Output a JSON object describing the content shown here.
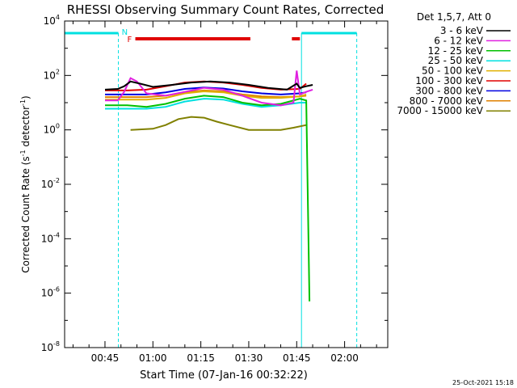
{
  "chart_data": {
    "type": "line",
    "title": "RHESSI Observing Summary Count Rates, Corrected",
    "xlabel": "Start Time (07-Jan-16 00:32:22)",
    "ylabel_parts": {
      "before": "Corrected Count Rate (s",
      "exp1": "-1",
      "mid": " detector",
      "exp2": "-1",
      "after": ")"
    },
    "x_ticks": [
      "00:45",
      "01:00",
      "01:15",
      "01:30",
      "01:45",
      "02:00"
    ],
    "x_tick_minutes": [
      45,
      60,
      75,
      90,
      105,
      120
    ],
    "xlim_minutes": [
      32.37,
      133.5
    ],
    "y_scale": "log",
    "ylim": [
      1e-08,
      10000.0
    ],
    "y_ticks": [
      {
        "base": "10",
        "exp": "4",
        "value": 4
      },
      {
        "base": "10",
        "exp": "2",
        "value": 2
      },
      {
        "base": "10",
        "exp": "0",
        "value": 0
      },
      {
        "base": "10",
        "exp": "-2",
        "value": -2
      },
      {
        "base": "10",
        "exp": "-4",
        "value": -4
      },
      {
        "base": "10",
        "exp": "-6",
        "value": -6
      },
      {
        "base": "10",
        "exp": "-8",
        "value": -8
      }
    ],
    "legend_title": "Det 1,5,7, Att 0",
    "legend_placement": "right",
    "series": [
      {
        "name": "3 - 6 keV",
        "color": "#000000",
        "points": [
          [
            45,
            30
          ],
          [
            49,
            32
          ],
          [
            51,
            40
          ],
          [
            53,
            60
          ],
          [
            56,
            50
          ],
          [
            60,
            38
          ],
          [
            66,
            45
          ],
          [
            72,
            55
          ],
          [
            78,
            60
          ],
          [
            84,
            55
          ],
          [
            90,
            45
          ],
          [
            96,
            35
          ],
          [
            102,
            30
          ],
          [
            105,
            50
          ],
          [
            106,
            35
          ],
          [
            108,
            40
          ],
          [
            110,
            45
          ]
        ]
      },
      {
        "name": "6 - 12 keV",
        "color": "#e020e0",
        "points": [
          [
            45,
            12
          ],
          [
            49,
            12
          ],
          [
            51,
            25
          ],
          [
            53,
            80
          ],
          [
            55,
            60
          ],
          [
            58,
            22
          ],
          [
            64,
            18
          ],
          [
            70,
            25
          ],
          [
            76,
            35
          ],
          [
            82,
            30
          ],
          [
            88,
            18
          ],
          [
            94,
            10
          ],
          [
            100,
            8
          ],
          [
            104,
            10
          ],
          [
            105,
            150
          ],
          [
            106,
            20
          ],
          [
            108,
            25
          ],
          [
            110,
            30
          ]
        ]
      },
      {
        "name": "12 - 25 keV",
        "color": "#00c000",
        "points": [
          [
            45,
            8
          ],
          [
            52,
            8
          ],
          [
            58,
            7
          ],
          [
            64,
            9
          ],
          [
            70,
            14
          ],
          [
            76,
            18
          ],
          [
            82,
            16
          ],
          [
            88,
            10
          ],
          [
            94,
            8
          ],
          [
            100,
            9
          ],
          [
            106,
            14
          ],
          [
            108,
            12
          ],
          [
            109,
            5e-07
          ]
        ]
      },
      {
        "name": "25 - 50 keV",
        "color": "#00e0e0",
        "points": [
          [
            45,
            6
          ],
          [
            52,
            6
          ],
          [
            58,
            6
          ],
          [
            64,
            7
          ],
          [
            70,
            11
          ],
          [
            76,
            14
          ],
          [
            82,
            13
          ],
          [
            88,
            9
          ],
          [
            94,
            7
          ],
          [
            100,
            8
          ],
          [
            106,
            10
          ],
          [
            108,
            10
          ]
        ]
      },
      {
        "name": "50 - 100 keV",
        "color": "#e0b000",
        "points": [
          [
            45,
            13
          ],
          [
            52,
            13
          ],
          [
            58,
            13
          ],
          [
            64,
            15
          ],
          [
            70,
            22
          ],
          [
            76,
            26
          ],
          [
            82,
            24
          ],
          [
            88,
            18
          ],
          [
            94,
            15
          ],
          [
            100,
            15
          ],
          [
            106,
            17
          ],
          [
            108,
            20
          ]
        ]
      },
      {
        "name": "100 - 300 keV",
        "color": "#e00000",
        "points": [
          [
            45,
            28
          ],
          [
            52,
            28
          ],
          [
            58,
            30
          ],
          [
            64,
            40
          ],
          [
            70,
            55
          ],
          [
            76,
            60
          ],
          [
            82,
            55
          ],
          [
            88,
            45
          ],
          [
            94,
            35
          ],
          [
            100,
            30
          ],
          [
            106,
            32
          ],
          [
            108,
            50
          ]
        ]
      },
      {
        "name": "300 - 800 keV",
        "color": "#0000e0",
        "points": [
          [
            45,
            20
          ],
          [
            52,
            20
          ],
          [
            58,
            20
          ],
          [
            64,
            24
          ],
          [
            70,
            32
          ],
          [
            76,
            36
          ],
          [
            82,
            33
          ],
          [
            88,
            26
          ],
          [
            94,
            22
          ],
          [
            100,
            20
          ],
          [
            106,
            22
          ],
          [
            108,
            24
          ]
        ]
      },
      {
        "name": "800 - 7000 keV",
        "color": "#e08000",
        "points": [
          [
            45,
            16
          ],
          [
            52,
            16
          ],
          [
            58,
            16
          ],
          [
            64,
            18
          ],
          [
            70,
            24
          ],
          [
            76,
            28
          ],
          [
            82,
            26
          ],
          [
            88,
            20
          ],
          [
            94,
            17
          ],
          [
            100,
            16
          ],
          [
            106,
            17
          ],
          [
            108,
            18
          ]
        ]
      },
      {
        "name": "7000 - 15000 keV",
        "color": "#808000",
        "points": [
          [
            53,
            1
          ],
          [
            60,
            1.1
          ],
          [
            64,
            1.5
          ],
          [
            68,
            2.5
          ],
          [
            72,
            3
          ],
          [
            76,
            2.8
          ],
          [
            80,
            2
          ],
          [
            84,
            1.5
          ],
          [
            90,
            1
          ],
          [
            96,
            1
          ],
          [
            100,
            1
          ],
          [
            104,
            1.2
          ],
          [
            108,
            1.5
          ]
        ]
      }
    ],
    "annotations": {
      "flare_label": "F",
      "night_label": "N",
      "flare_intervals_minutes": [
        [
          54.5,
          90.5
        ],
        [
          103.5,
          106
        ]
      ],
      "night_intervals_minutes": [
        [
          32.37,
          49.2
        ],
        [
          106.5,
          123.8
        ]
      ],
      "night_bar_color": "#00e0e0",
      "flare_bar_color": "#e00000"
    }
  },
  "footer": {
    "date_stamp": "25-Oct-2021 15:18"
  }
}
